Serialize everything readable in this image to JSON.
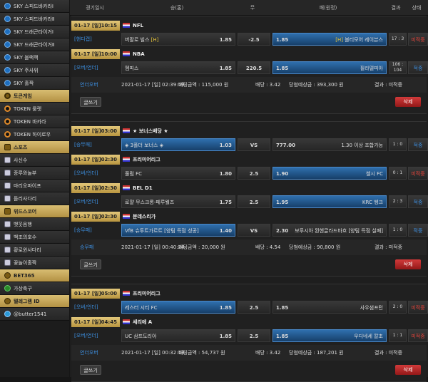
{
  "sidebar": {
    "top": [
      "SKY 스피드바카라Ⅰ",
      "SKY 스피드바카라Ⅱ",
      "SKY 드래곤타이거Ⅰ",
      "SKY 드래곤타이거Ⅱ",
      "SKY 블랙잭",
      "SKY 주사위",
      "SKY 홀짝"
    ],
    "sections": [
      {
        "title": "토큰게임",
        "items": [
          "TOKEN 룰렛",
          "TOKEN 바카라",
          "TOKEN 하이로우"
        ]
      },
      {
        "title": "스포츠",
        "items": [
          "사신수",
          "종루와놀부",
          "마리오파이프",
          "돌리사다리"
        ]
      },
      {
        "title": "위드스코어",
        "items": [
          "뱃웃음행",
          "백조의호수",
          "황로윈사다리",
          "꽃놀이홀짝"
        ]
      },
      {
        "title": "BET365",
        "items": [
          "가상축구"
        ]
      },
      {
        "title": "텔레그램 ID",
        "items": [
          "@butter1541"
        ]
      }
    ]
  },
  "header": [
    "경기일시",
    "승(홈)",
    "무",
    "패(원정)",
    "결과",
    "상태"
  ],
  "groups": [
    {
      "matches": [
        {
          "datetime": "01-17 [일]10:15",
          "league": "NFL",
          "bet_type": "[핸디캡]",
          "home": "버팔로 빌스",
          "home_tag": "[H]",
          "home_odds": "1.85",
          "draw": "-2.5",
          "away_odds": "1.85",
          "away_tag": "[H]",
          "away": "볼티모어 레이븐스",
          "score": "17 : 3",
          "status": "미적중",
          "status_color": "#e0433a",
          "pick": "away"
        },
        {
          "datetime": "01-17 [일]10:00",
          "league": "NBA",
          "bet_type": "[오버/언더]",
          "home": "멤피스",
          "home_odds": "1.85",
          "draw": "220.5",
          "away_odds": "1.85",
          "away": "필라델피아",
          "score": "106 : 104",
          "status": "적중",
          "status_color": "#3d8fe0",
          "pick": "away"
        }
      ],
      "summary": {
        "type": "언더오버",
        "time": "2021-01-17 [일] 02:39:59",
        "amount": "배팅금액 : 115,000 원",
        "odds": "배당 : 3.42",
        "expected": "당첨예상금 : 393,300 원",
        "result": "결과 : 미적중"
      },
      "buttons": {
        "write": "글쓰기",
        "delete": "삭제"
      }
    },
    {
      "matches": [
        {
          "datetime": "01-17 [일]03:00",
          "league": "★ 보너스배당 ★",
          "bet_type": "[승무패]",
          "home": "◈ 3폴더 보너스 ◈",
          "home_odds": "1.03",
          "draw": "VS",
          "away_odds": "777.00",
          "away": "1.30 이상 조합가능",
          "score": "1 : 0",
          "status": "적중",
          "status_color": "#3d8fe0",
          "pick": "home"
        },
        {
          "datetime": "01-17 [일]02:30",
          "league": "프리미어리그",
          "bet_type": "[오버/언더]",
          "home": "풀럼 FC",
          "home_odds": "1.80",
          "draw": "2.5",
          "away_odds": "1.90",
          "away": "첼시 FC",
          "score": "0 : 1",
          "status": "미적중",
          "status_color": "#e0433a",
          "pick": "away"
        },
        {
          "datetime": "01-17 [일]02:30",
          "league": "BEL D1",
          "bet_type": "[오버/언더]",
          "home": "로얄 무스크롱-페루웰즈",
          "home_odds": "1.75",
          "draw": "2.5",
          "away_odds": "1.95",
          "away": "KRC 헹크",
          "score": "2 : 3",
          "status": "적중",
          "status_color": "#3d8fe0",
          "pick": "away"
        },
        {
          "datetime": "01-17 [일]02:30",
          "league": "분데스리가",
          "bet_type": "[승무패]",
          "home": "VfB 슈투트가르트 [양팀 득점 성공]",
          "home_odds": "1.40",
          "draw": "VS",
          "away_odds": "2.30",
          "away": "보루시아 묀헨글라드바흐 [양팀 득점 실패]",
          "score": "1 : 0",
          "status": "적중",
          "status_color": "#3d8fe0",
          "pick": "home"
        }
      ],
      "summary": {
        "type": "승무패",
        "time": "2021-01-17 [일] 00:40:24",
        "amount": "배팅금액 : 20,000 원",
        "odds": "배당 : 4.54",
        "expected": "당첨예상금 : 90,800 원",
        "result": "결과 : 미적중"
      },
      "buttons": {
        "write": "글쓰기",
        "delete": "삭제"
      }
    },
    {
      "matches": [
        {
          "datetime": "01-17 [일]05:00",
          "league": "프리미어리그",
          "bet_type": "[오버/언더]",
          "home": "레스터 시티 FC",
          "home_odds": "1.85",
          "draw": "2.5",
          "away_odds": "1.85",
          "away": "사우샘프턴",
          "score": "2 : 0",
          "status": "미적중",
          "status_color": "#e0433a",
          "pick": "home"
        },
        {
          "datetime": "01-17 [일]04:45",
          "league": "세리에 A",
          "bet_type": "[오버/언더]",
          "home": "UC 삼프도리아",
          "home_odds": "1.85",
          "draw": "2.5",
          "away_odds": "1.85",
          "away": "우디네세 칼초",
          "score": "1 : 1",
          "status": "미적중",
          "status_color": "#e0433a",
          "pick": "away"
        }
      ],
      "summary": {
        "type": "언더오버",
        "time": "2021-01-17 [일] 00:32:13",
        "amount": "배팅금액 : 54,737 원",
        "odds": "배당 : 3.42",
        "expected": "당첨예상금 : 187,201 원",
        "result": "결과 : 미적중"
      },
      "buttons": {
        "write": "글쓰기",
        "delete": "삭제"
      }
    }
  ]
}
